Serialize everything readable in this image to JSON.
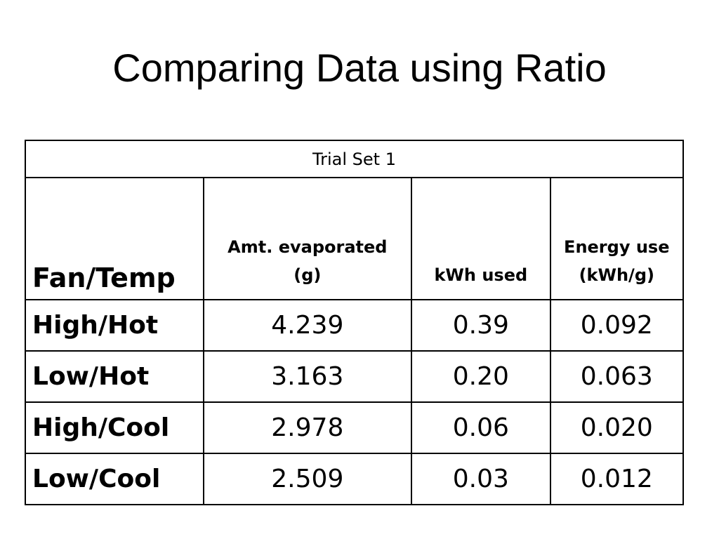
{
  "title": "Comparing Data using Ratio",
  "table": {
    "caption": "Trial Set 1",
    "headers": [
      {
        "line1": "Fan/Temp",
        "line2": ""
      },
      {
        "line1": "Amt. evaporated",
        "line2": "(g)"
      },
      {
        "line1": "kWh used",
        "line2": ""
      },
      {
        "line1": "Energy use",
        "line2": "(kWh/g)"
      }
    ],
    "rows": [
      {
        "label": "High/Hot",
        "amount": "4.239",
        "kwh": "0.39",
        "energy": "0.092"
      },
      {
        "label": "Low/Hot",
        "amount": "3.163",
        "kwh": "0.20",
        "energy": "0.063"
      },
      {
        "label": "High/Cool",
        "amount": "2.978",
        "kwh": "0.06",
        "energy": "0.020"
      },
      {
        "label": "Low/Cool",
        "amount": "2.509",
        "kwh": "0.03",
        "energy": "0.012"
      }
    ]
  }
}
